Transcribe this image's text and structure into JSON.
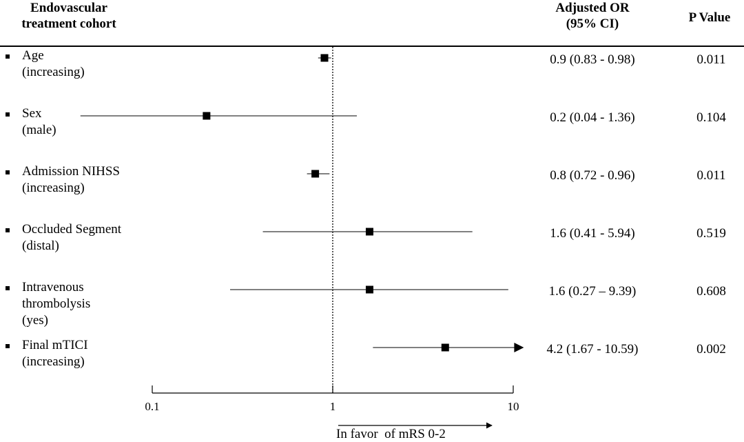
{
  "header": {
    "cohort_line1": "Endovascular",
    "cohort_line2": "treatment cohort",
    "or_line1": "Adjusted OR",
    "or_line2": "(95% CI)",
    "p_label": "P Value"
  },
  "rows": [
    {
      "label": [
        "Age",
        "(increasing)"
      ],
      "or_text": "0.9 (0.83 - 0.98)",
      "p_text": "0.011"
    },
    {
      "label": [
        "Sex",
        "(male)"
      ],
      "or_text": "0.2 (0.04 - 1.36)",
      "p_text": "0.104"
    },
    {
      "label": [
        "Admission NIHSS",
        "(increasing)"
      ],
      "or_text": "0.8 (0.72 - 0.96)",
      "p_text": "0.011"
    },
    {
      "label": [
        "Occluded Segment",
        "(distal)"
      ],
      "or_text": "1.6 (0.41 - 5.94)",
      "p_text": "0.519"
    },
    {
      "label": [
        "Intravenous",
        "thrombolysis",
        "(yes)"
      ],
      "or_text": "1.6 (0.27 – 9.39)",
      "p_text": "0.608"
    },
    {
      "label": [
        "Final mTICI",
        "(increasing)"
      ],
      "or_text": "4.2 (1.67 - 10.59)",
      "p_text": "0.002"
    }
  ],
  "favor_label": "In favor  of mRS 0-2",
  "chart_data": {
    "type": "scatter",
    "subtype": "forest",
    "x_scale": "log",
    "xlim": [
      0.1,
      10
    ],
    "x_ticks": [
      0.1,
      1,
      10
    ],
    "x_tick_labels": [
      "0.1",
      "1",
      "10"
    ],
    "reference_line": 1,
    "xlabel": "In favor  of mRS 0-2",
    "series": [
      {
        "points": [
          {
            "category": "Age (increasing)",
            "or": 0.9,
            "lo": 0.83,
            "hi": 0.98
          },
          {
            "category": "Sex (male)",
            "or": 0.2,
            "lo": 0.04,
            "hi": 1.36
          },
          {
            "category": "Admission NIHSS (increasing)",
            "or": 0.8,
            "lo": 0.72,
            "hi": 0.96
          },
          {
            "category": "Occluded Segment (distal)",
            "or": 1.6,
            "lo": 0.41,
            "hi": 5.94
          },
          {
            "category": "Intravenous thrombolysis (yes)",
            "or": 1.6,
            "lo": 0.27,
            "hi": 9.39
          },
          {
            "category": "Final mTICI (increasing)",
            "or": 4.2,
            "lo": 1.67,
            "hi": 10.59
          }
        ]
      }
    ],
    "legend": "none",
    "grid": false
  }
}
